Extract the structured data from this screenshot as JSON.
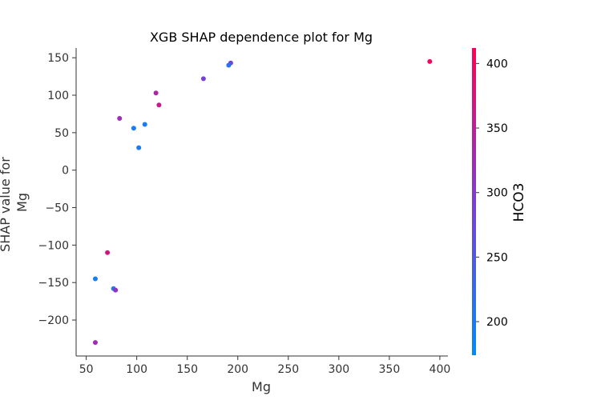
{
  "chart_data": {
    "type": "scatter",
    "title": "XGB SHAP dependence plot for Mg",
    "xlabel": "Mg",
    "ylabel_lines": [
      "SHAP value for",
      "Mg"
    ],
    "xlim": [
      40,
      408
    ],
    "ylim": [
      -248,
      163
    ],
    "x_ticks": [
      50,
      100,
      150,
      200,
      250,
      300,
      350,
      400
    ],
    "y_ticks": [
      150,
      100,
      50,
      0,
      -50,
      -100,
      -150,
      -200
    ],
    "grid": false,
    "colorbar": {
      "label": "HCO3",
      "range": [
        174,
        412
      ],
      "ticks": [
        400,
        350,
        300,
        250,
        200
      ],
      "colors": [
        "#008bfb",
        "#7e3cd5",
        "#ff0052"
      ]
    },
    "points": [
      {
        "x": 390,
        "y": 145,
        "c": 400
      },
      {
        "x": 193,
        "y": 143,
        "c": 280
      },
      {
        "x": 191,
        "y": 140,
        "c": 210
      },
      {
        "x": 166,
        "y": 122,
        "c": 285
      },
      {
        "x": 119,
        "y": 103,
        "c": 335
      },
      {
        "x": 122,
        "y": 87,
        "c": 360
      },
      {
        "x": 83,
        "y": 69,
        "c": 320
      },
      {
        "x": 108,
        "y": 61,
        "c": 195
      },
      {
        "x": 97,
        "y": 56,
        "c": 195
      },
      {
        "x": 102,
        "y": 30,
        "c": 200
      },
      {
        "x": 71,
        "y": -110,
        "c": 370
      },
      {
        "x": 59,
        "y": -145,
        "c": 195
      },
      {
        "x": 77,
        "y": -158,
        "c": 200
      },
      {
        "x": 79,
        "y": -160,
        "c": 310
      },
      {
        "x": 59,
        "y": -230,
        "c": 320
      }
    ]
  }
}
